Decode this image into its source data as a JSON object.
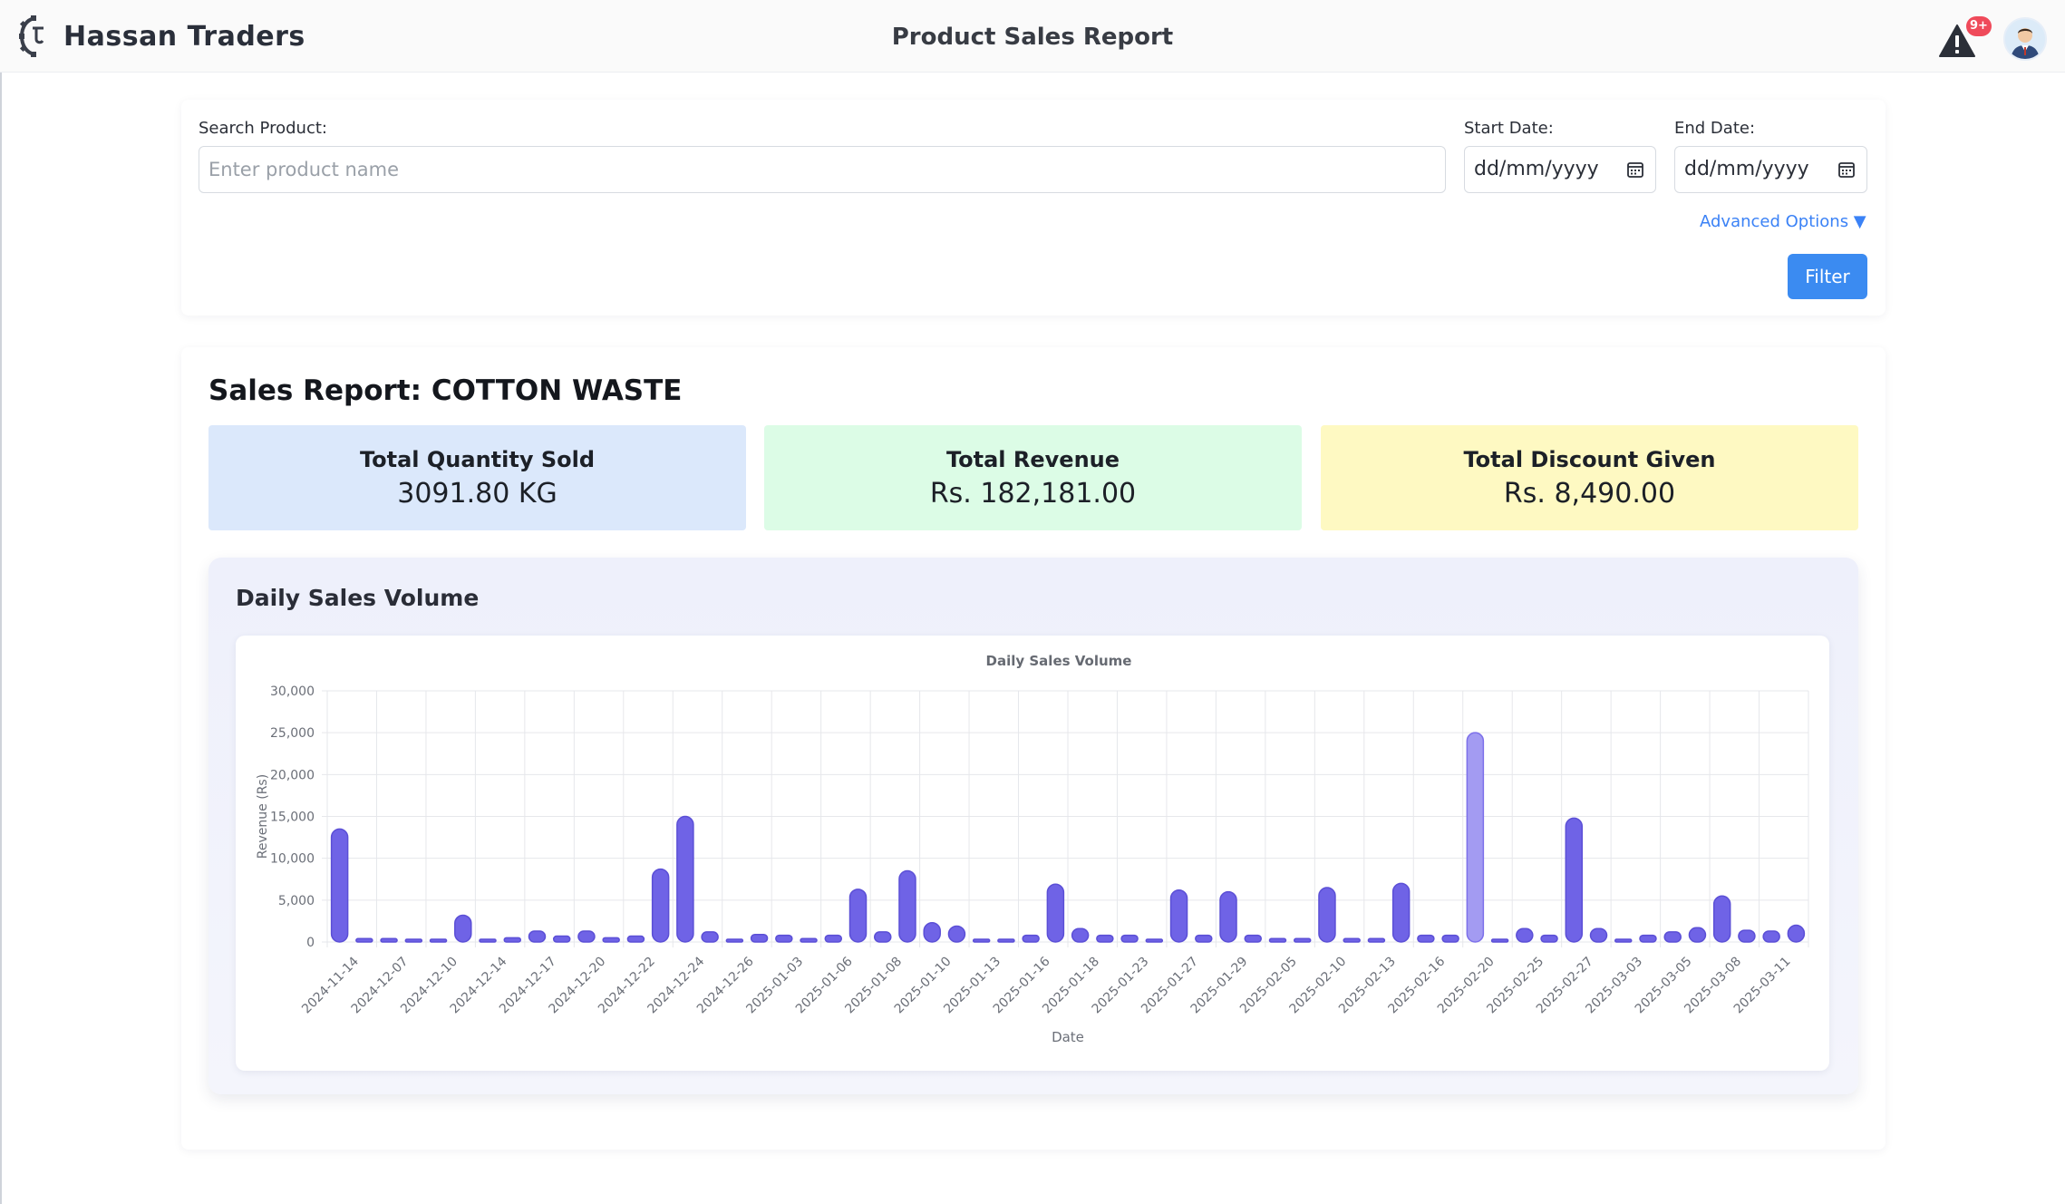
{
  "header": {
    "brand_name": "Hassan Traders",
    "page_title": "Product Sales Report",
    "alert_badge": "9+",
    "alert_icon": "warning-triangle-icon",
    "avatar_icon": "user-avatar-icon"
  },
  "filters": {
    "search_label": "Search Product:",
    "search_placeholder": "Enter product name",
    "start_label": "Start Date:",
    "start_value": "dd/mm/yyyy",
    "end_label": "End Date:",
    "end_value": "dd/mm/yyyy",
    "advanced_label": "Advanced Options ▼",
    "filter_button": "Filter"
  },
  "report": {
    "title": "Sales Report: COTTON WASTE",
    "stats": [
      {
        "label": "Total Quantity Sold",
        "value": "3091.80 KG",
        "color": "#dbe8fb"
      },
      {
        "label": "Total Revenue",
        "value": "Rs. 182,181.00",
        "color": "#dcfce6"
      },
      {
        "label": "Total Discount Given",
        "value": "Rs. 8,490.00",
        "color": "#fef9c2"
      }
    ],
    "chart_section_title": "Daily Sales Volume"
  },
  "colors": {
    "accent": "#3b8bf1",
    "bar": "#6f63e6",
    "bar_highlight": "#a39bf2"
  },
  "chart_data": {
    "type": "bar",
    "title": "Daily Sales Volume",
    "xlabel": "Date",
    "ylabel": "Revenue (Rs)",
    "ylim": [
      0,
      30000
    ],
    "yticks": [
      "0",
      "5,000",
      "10,000",
      "15,000",
      "20,000",
      "25,000",
      "30,000"
    ],
    "grid": true,
    "legend": "none",
    "tick_labels": [
      "2024-11-14",
      "2024-12-07",
      "2024-12-10",
      "2024-12-14",
      "2024-12-17",
      "2024-12-20",
      "2024-12-22",
      "2024-12-24",
      "2024-12-26",
      "2025-01-03",
      "2025-01-06",
      "2025-01-08",
      "2025-01-10",
      "2025-01-13",
      "2025-01-16",
      "2025-01-18",
      "2025-01-23",
      "2025-01-27",
      "2025-01-29",
      "2025-02-05",
      "2025-02-10",
      "2025-02-13",
      "2025-02-16",
      "2025-02-20",
      "2025-02-25",
      "2025-02-27",
      "2025-03-03",
      "2025-03-05",
      "2025-03-08",
      "2025-03-11"
    ],
    "values": [
      13500,
      400,
      400,
      100,
      100,
      3200,
      100,
      500,
      1300,
      700,
      1300,
      500,
      700,
      8700,
      15000,
      1200,
      100,
      900,
      800,
      400,
      800,
      6300,
      1200,
      8500,
      2300,
      1900,
      200,
      100,
      800,
      6900,
      1600,
      800,
      800,
      100,
      6200,
      800,
      6000,
      800,
      400,
      400,
      6500,
      400,
      400,
      7000,
      800,
      800,
      25000,
      100,
      1600,
      800,
      14800,
      1600,
      300,
      800,
      1200,
      1700,
      5500,
      1400,
      1300,
      2000
    ]
  }
}
